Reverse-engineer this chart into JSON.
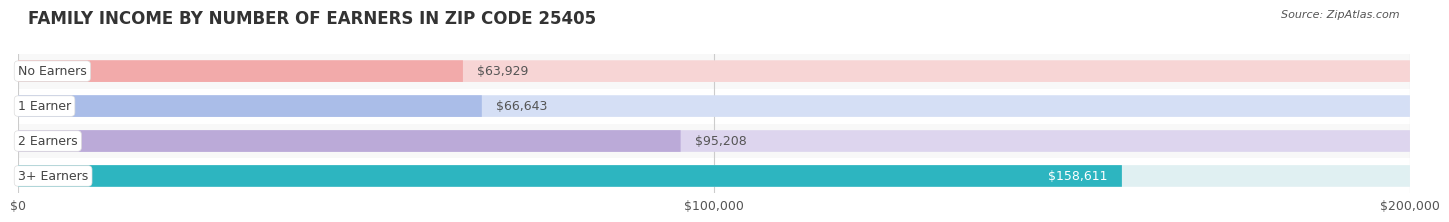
{
  "title": "FAMILY INCOME BY NUMBER OF EARNERS IN ZIP CODE 25405",
  "source": "Source: ZipAtlas.com",
  "categories": [
    "No Earners",
    "1 Earner",
    "2 Earners",
    "3+ Earners"
  ],
  "values": [
    63929,
    66643,
    95208,
    158611
  ],
  "bar_colors": [
    "#f2aaaa",
    "#aabde8",
    "#bbaad8",
    "#2db5c0"
  ],
  "bar_bg_colors": [
    "#f7d5d5",
    "#d5dff5",
    "#ddd5ee",
    "#e0f0f2"
  ],
  "label_colors": [
    "#444444",
    "#444444",
    "#444444",
    "#444444"
  ],
  "value_label_colors": [
    "#555555",
    "#555555",
    "#555555",
    "#ffffff"
  ],
  "value_labels": [
    "$63,929",
    "$66,643",
    "$95,208",
    "$158,611"
  ],
  "xlim": [
    0,
    200000
  ],
  "xticks": [
    0,
    100000,
    200000
  ],
  "xtick_labels": [
    "$0",
    "$100,000",
    "$200,000"
  ],
  "bar_height": 0.62,
  "background_color": "#ffffff",
  "row_bg_colors": [
    "#f8f8f8",
    "#ffffff",
    "#f8f8f8",
    "#ffffff"
  ],
  "title_fontsize": 12,
  "source_fontsize": 8,
  "label_fontsize": 9,
  "value_fontsize": 9,
  "tick_fontsize": 9
}
